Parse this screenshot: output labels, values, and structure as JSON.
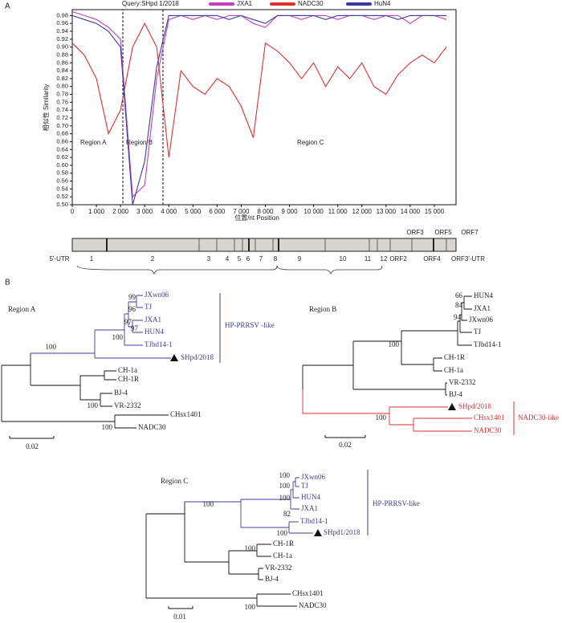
{
  "panel_labels": [
    "A",
    "B"
  ],
  "chart_data": {
    "type": "line",
    "title": "Query:SHpd 1/2018",
    "x_label": "位置/nt  Position",
    "y_label": "相似性 Similarity",
    "annotations": [
      "Region A",
      "Region B",
      "Region C"
    ],
    "x": [
      0,
      500,
      1000,
      1500,
      2000,
      2500,
      3000,
      3500,
      4000,
      4500,
      5000,
      5500,
      6000,
      6500,
      7000,
      7500,
      8000,
      8500,
      9000,
      9500,
      10000,
      10500,
      11000,
      11500,
      12000,
      12500,
      13000,
      13500,
      14000,
      14500,
      15000,
      15500
    ],
    "series": [
      {
        "name": "JXA1",
        "color": "#c040c0",
        "values": [
          0.99,
          0.98,
          0.97,
          0.95,
          0.92,
          0.52,
          0.55,
          0.82,
          0.97,
          0.98,
          0.97,
          0.98,
          0.97,
          0.98,
          0.98,
          0.96,
          0.95,
          0.98,
          0.98,
          0.97,
          0.98,
          0.98,
          0.97,
          0.98,
          0.98,
          0.97,
          0.98,
          0.98,
          0.96,
          0.98,
          0.98,
          0.97
        ]
      },
      {
        "name": "NADC30",
        "color": "#e03030",
        "values": [
          0.91,
          0.88,
          0.82,
          0.68,
          0.74,
          0.9,
          0.96,
          0.9,
          0.62,
          0.84,
          0.8,
          0.78,
          0.82,
          0.8,
          0.75,
          0.67,
          0.91,
          0.89,
          0.86,
          0.82,
          0.86,
          0.8,
          0.85,
          0.82,
          0.86,
          0.8,
          0.78,
          0.83,
          0.86,
          0.88,
          0.86,
          0.9
        ]
      },
      {
        "name": "HuN4",
        "color": "#3a3aa0",
        "values": [
          0.98,
          0.97,
          0.96,
          0.94,
          0.9,
          0.5,
          0.61,
          0.85,
          0.98,
          0.98,
          0.98,
          0.98,
          0.98,
          0.97,
          0.98,
          0.97,
          0.96,
          0.98,
          0.98,
          0.98,
          0.98,
          0.97,
          0.98,
          0.98,
          0.98,
          0.98,
          0.98,
          0.97,
          0.98,
          0.98,
          0.98,
          0.98
        ]
      }
    ],
    "xlim": [
      0,
      15900
    ],
    "ylim": [
      0.5,
      0.995
    ],
    "xticks": [
      0,
      {
        "value": 1000,
        "label": "1 000"
      },
      {
        "value": 2000,
        "label": "2 000"
      },
      {
        "value": 3000,
        "label": "3 000"
      },
      {
        "value": 4000,
        "label": "4 000"
      },
      {
        "value": 5000,
        "label": "5 000"
      },
      {
        "value": 6000,
        "label": "6 000"
      },
      {
        "value": 7000,
        "label": "7 000"
      },
      {
        "value": 8000,
        "label": "8 000"
      },
      {
        "value": 9000,
        "label": "9 000"
      },
      {
        "value": 10000,
        "label": "10 000"
      },
      {
        "value": 11000,
        "label": "11 000"
      },
      {
        "value": 12000,
        "label": "12 000"
      },
      {
        "value": 13000,
        "label": "13 000"
      },
      {
        "value": 14000,
        "label": "14 000"
      },
      {
        "value": 15000,
        "label": "15 000"
      }
    ],
    "yticks": [
      {
        "value": 0.5,
        "label": "0.50"
      },
      0.52,
      0.54,
      0.56,
      0.58,
      {
        "value": 0.6,
        "label": "0.60"
      },
      0.62,
      0.64,
      0.66,
      0.68,
      {
        "value": 0.7,
        "label": "0.70"
      },
      0.72,
      0.74,
      0.76,
      0.78,
      {
        "value": 0.8,
        "label": "0.80"
      },
      0.82,
      0.84,
      0.86,
      0.88,
      {
        "value": 0.9,
        "label": "0.90"
      },
      0.92,
      0.94,
      0.96,
      0.98
    ],
    "grid": false
  },
  "genome_map": {
    "top_labels": [
      "ORF3",
      "ORF5",
      "ORF7"
    ],
    "bottom_labels": [
      "5'-UTR",
      "1",
      "2",
      "3",
      "4",
      "5",
      "6",
      "7",
      "8",
      "9",
      "10",
      "11",
      "12",
      "ORF2",
      "ORF4",
      "ORF3'-UTR"
    ]
  },
  "trees": [
    {
      "title": "Region A",
      "leaves": [
        "JXwn06",
        "TJ",
        "JXA1",
        "HUN4",
        "TJbd14-1",
        "SHpd/2018",
        "CH-1a",
        "CH-1R",
        "BJ-4",
        "VR-2332",
        "CHsx1401",
        "NADC30"
      ],
      "bootstrap": [
        99,
        96,
        97,
        97,
        100,
        100,
        100,
        100
      ],
      "clade_label": "HP-PRRSV -like",
      "scale": "0.02"
    },
    {
      "title": "Region B",
      "leaves": [
        "HUN4",
        "JXA1",
        "JXwn06",
        "TJ",
        "TJbd14-1",
        "CH-1R",
        "CH-1a",
        "VR-2332",
        "BJ-4",
        "SHpd/2018",
        "CHsx1401",
        "NADC30"
      ],
      "bootstrap": [
        66,
        84,
        94,
        100,
        100
      ],
      "clade_label": "NADC30-like",
      "scale": "0.02"
    },
    {
      "title": "Region C",
      "leaves": [
        "JXwn06",
        "TJ",
        "HUN4",
        "JXA1",
        "TJbd14-1",
        "SHpd1/2018",
        "CH-1R",
        "CH-1a",
        "VR-2332",
        "BJ-4",
        "CHsx1401",
        "NADC30"
      ],
      "bootstrap": [
        100,
        100,
        100,
        82,
        100,
        100,
        100,
        100
      ],
      "clade_label": "HP-PRRSV-like",
      "scale": "0.01"
    }
  ]
}
